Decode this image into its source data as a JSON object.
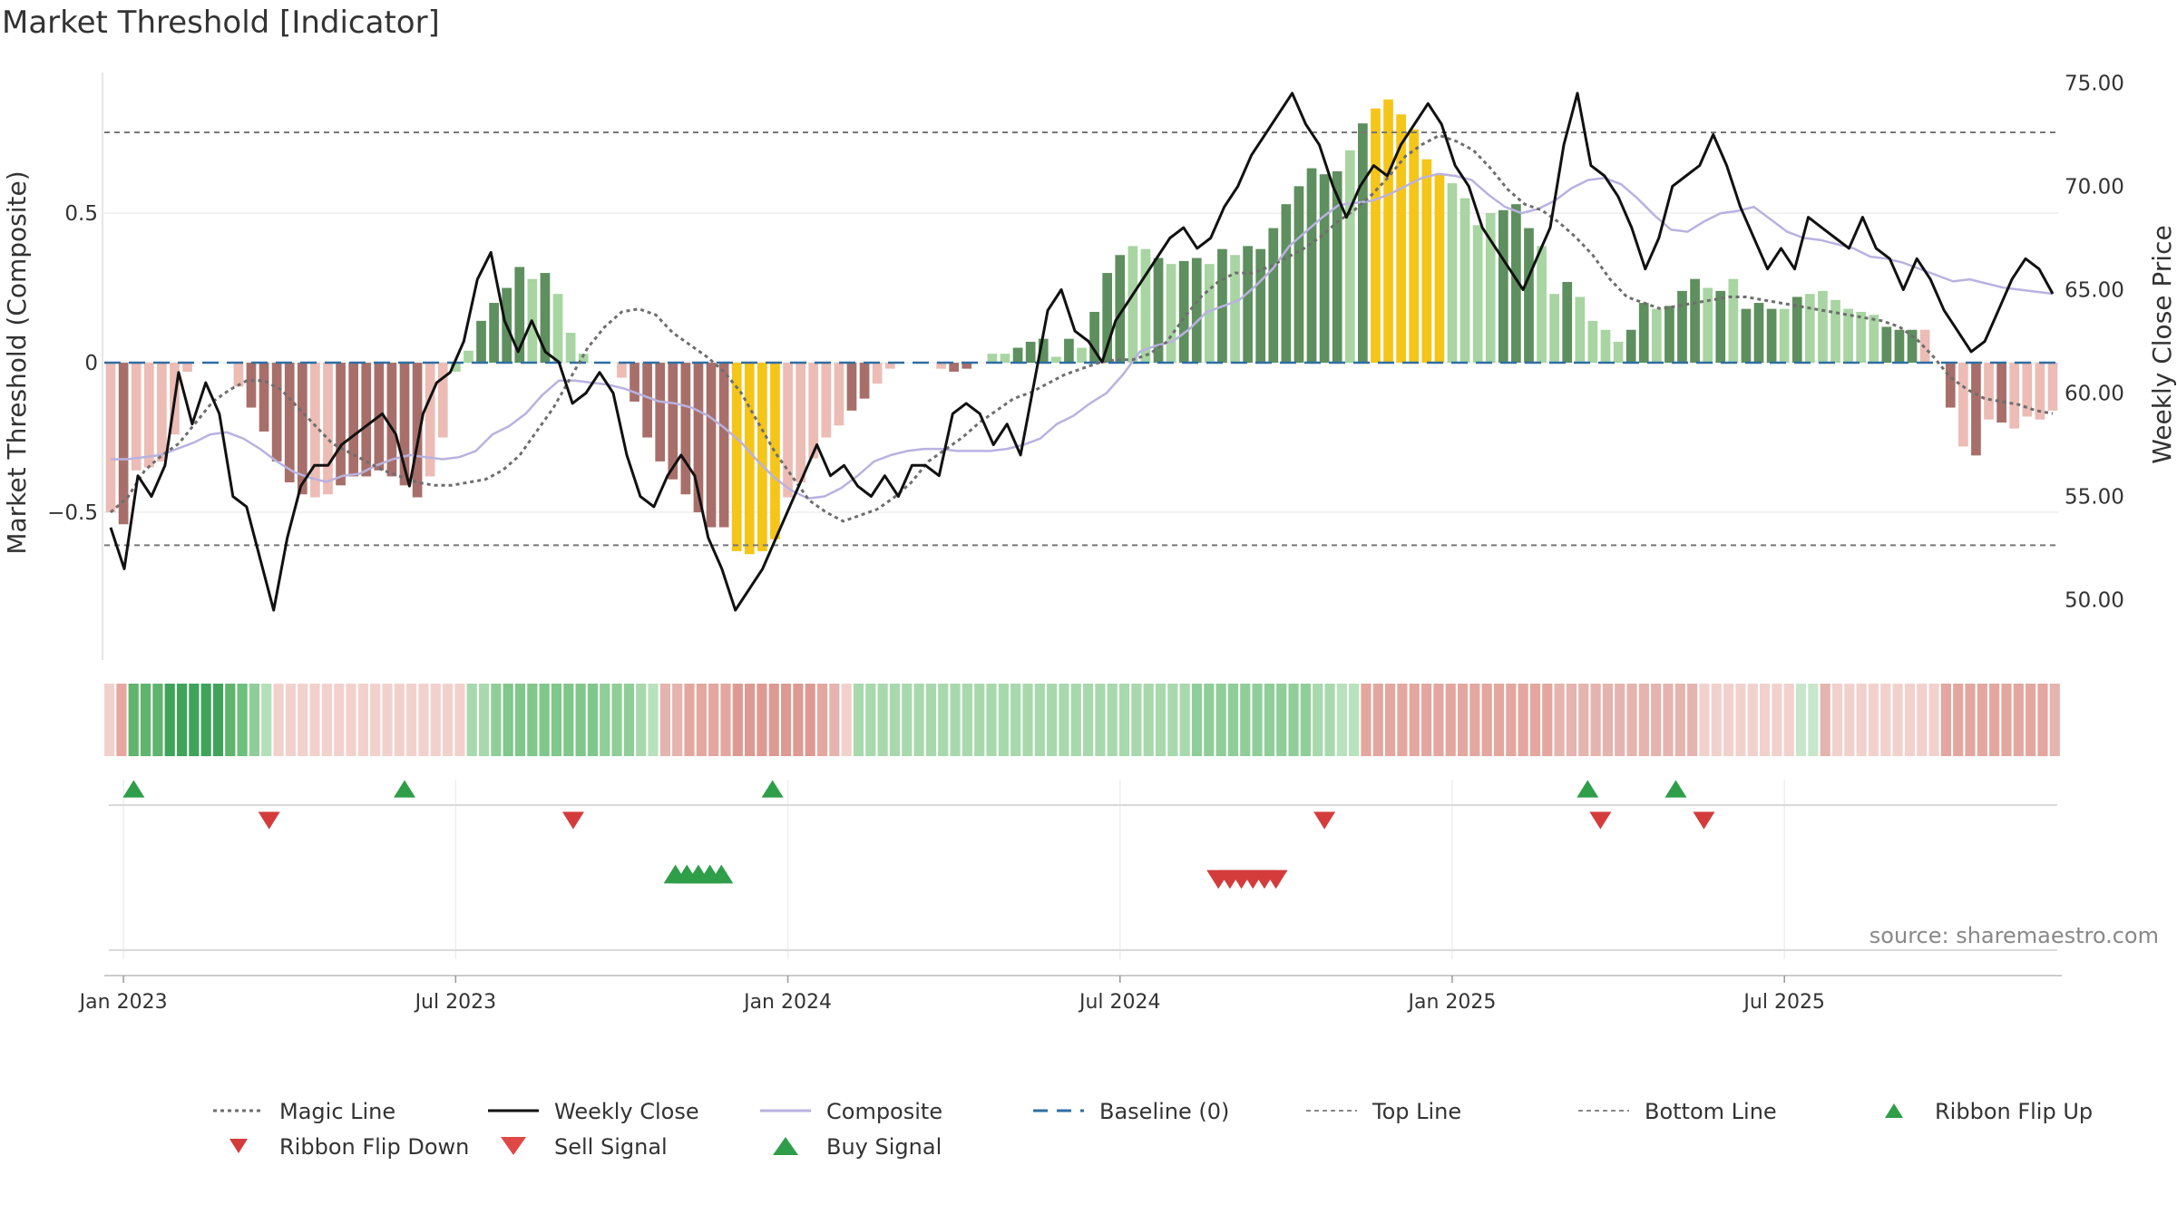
{
  "title": "Market Threshold [Indicator]",
  "source": "source: sharemaestro.com",
  "colors": {
    "bar_green_dark": "#5e8f5e",
    "bar_green_light": "#a8d5a2",
    "bar_red_dark": "#a86f6a",
    "bar_red_light": "#ecbcb5",
    "bar_gold": "#f5c518",
    "close": "#111111",
    "composite": "#b9b2e0",
    "magic": "#6e6e6e",
    "baseline": "#2f6ea3",
    "threshold": "#777777",
    "buy": "#2e9e48",
    "sell": "#d43c3c"
  },
  "chart_data": {
    "type": "bar",
    "title": "Market Threshold [Indicator]",
    "ylabel": "Market Threshold (Composite)",
    "ylabel_right": "Weekly Close Price",
    "ylim": [
      -1.0,
      0.97
    ],
    "ylim_right": [
      47.0,
      75.5
    ],
    "yticks": [
      {
        "v": 0.5,
        "label": "0.5"
      },
      {
        "v": 0,
        "label": "0"
      },
      {
        "v": -0.5,
        "label": "−0.5"
      }
    ],
    "yticks_right": [
      {
        "v": 75,
        "label": "75.00"
      },
      {
        "v": 70,
        "label": "70.00"
      },
      {
        "v": 65,
        "label": "65.00"
      },
      {
        "v": 60,
        "label": "60.00"
      },
      {
        "v": 55,
        "label": "55.00"
      },
      {
        "v": 50,
        "label": "50.00"
      }
    ],
    "xticks": [
      {
        "x": 1,
        "label": "Jan 2023"
      },
      {
        "x": 27,
        "label": "Jul 2023"
      },
      {
        "x": 53,
        "label": "Jan 2024"
      },
      {
        "x": 79,
        "label": "Jul 2024"
      },
      {
        "x": 105,
        "label": "Jan 2025"
      },
      {
        "x": 131,
        "label": "Jul 2025"
      }
    ],
    "top_line": 0.77,
    "bottom_line": -0.61,
    "composite_bars": [
      -0.5,
      -0.54,
      -0.36,
      -0.35,
      -0.33,
      -0.24,
      -0.03,
      0,
      0,
      0,
      -0.08,
      -0.15,
      -0.23,
      -0.33,
      -0.4,
      -0.44,
      -0.45,
      -0.44,
      -0.41,
      -0.38,
      -0.38,
      -0.36,
      -0.38,
      -0.41,
      -0.45,
      -0.38,
      -0.25,
      -0.03,
      0.04,
      0.14,
      0.2,
      0.25,
      0.32,
      0.28,
      0.3,
      0.23,
      0.1,
      0.03,
      0,
      0,
      -0.05,
      -0.13,
      -0.25,
      -0.33,
      -0.39,
      -0.44,
      -0.5,
      -0.55,
      -0.55,
      -0.63,
      -0.64,
      -0.63,
      -0.59,
      -0.45,
      -0.4,
      -0.32,
      -0.25,
      -0.21,
      -0.16,
      -0.12,
      -0.07,
      -0.02,
      0,
      0,
      0,
      -0.02,
      -0.03,
      -0.02,
      0,
      0.03,
      0.03,
      0.05,
      0.07,
      0.08,
      0.02,
      0.08,
      0.05,
      0.17,
      0.3,
      0.36,
      0.39,
      0.38,
      0.35,
      0.33,
      0.34,
      0.35,
      0.33,
      0.38,
      0.36,
      0.39,
      0.38,
      0.45,
      0.53,
      0.59,
      0.65,
      0.63,
      0.64,
      0.71,
      0.8,
      0.85,
      0.88,
      0.83,
      0.78,
      0.68,
      0.63,
      0.6,
      0.55,
      0.46,
      0.5,
      0.51,
      0.53,
      0.45,
      0.39,
      0.23,
      0.27,
      0.22,
      0.14,
      0.11,
      0.07,
      0.11,
      0.2,
      0.18,
      0.19,
      0.24,
      0.28,
      0.25,
      0.24,
      0.28,
      0.18,
      0.2,
      0.18,
      0.18,
      0.22,
      0.23,
      0.24,
      0.21,
      0.18,
      0.17,
      0.16,
      0.12,
      0.11,
      0.11,
      0.11,
      0,
      -0.15,
      -0.28,
      -0.31,
      -0.19,
      -0.2,
      -0.22,
      -0.18,
      -0.19,
      -0.16
    ],
    "bar_shades": [
      "rl",
      "rd",
      "rl",
      "rl",
      "rl",
      "rl",
      "rl",
      "rl",
      "rl",
      "rl",
      "rl",
      "rd",
      "rd",
      "rd",
      "rd",
      "rd",
      "rl",
      "rl",
      "rd",
      "rd",
      "rd",
      "rd",
      "rd",
      "rd",
      "rd",
      "rl",
      "rl",
      "gl",
      "gl",
      "gd",
      "gd",
      "gd",
      "gd",
      "gl",
      "gd",
      "gl",
      "gl",
      "gl",
      "gl",
      "gl",
      "rl",
      "rd",
      "rd",
      "rd",
      "rd",
      "rd",
      "rd",
      "rd",
      "rd",
      "y",
      "y",
      "y",
      "y",
      "rl",
      "rl",
      "rl",
      "rl",
      "rl",
      "rd",
      "rd",
      "rl",
      "rl",
      "rl",
      "rl",
      "rl",
      "rl",
      "rd",
      "rd",
      "rl",
      "gl",
      "gl",
      "gd",
      "gd",
      "gd",
      "gl",
      "gd",
      "gl",
      "gd",
      "gd",
      "gd",
      "gl",
      "gl",
      "gd",
      "gl",
      "gd",
      "gd",
      "gl",
      "gd",
      "gl",
      "gd",
      "gd",
      "gd",
      "gd",
      "gd",
      "gd",
      "gd",
      "gd",
      "gl",
      "gd",
      "y",
      "y",
      "y",
      "y",
      "y",
      "y",
      "gl",
      "gl",
      "gl",
      "gl",
      "gd",
      "gd",
      "gd",
      "gl",
      "gl",
      "gd",
      "gl",
      "gl",
      "gl",
      "gl",
      "gd",
      "gd",
      "gl",
      "gd",
      "gd",
      "gd",
      "gl",
      "gd",
      "gl",
      "gd",
      "gd",
      "gd",
      "gl",
      "gd",
      "gl",
      "gl",
      "gl",
      "gl",
      "gl",
      "gl",
      "gd",
      "gd",
      "gd",
      "rl",
      "rd",
      "rd",
      "rl",
      "rd",
      "rl",
      "rd",
      "rl",
      "rl"
    ],
    "weekly_close": [
      53.5,
      51.5,
      56,
      55,
      56.5,
      61,
      58.5,
      60.5,
      59,
      55,
      54.5,
      52,
      49.5,
      53,
      55.5,
      56.5,
      56.5,
      57.5,
      58,
      58.5,
      59,
      58,
      55.5,
      59,
      60.5,
      61,
      62.5,
      65.5,
      66.8,
      63.5,
      62,
      63.5,
      62,
      61.5,
      59.5,
      60,
      61,
      60,
      57,
      55,
      54.5,
      56,
      57,
      56,
      53,
      51.5,
      49.5,
      50.5,
      51.5,
      53,
      54.5,
      56,
      57.5,
      56,
      56.5,
      55.5,
      55,
      56,
      55,
      56.5,
      56.5,
      56,
      59,
      59.5,
      59,
      57.5,
      58.5,
      57,
      60.5,
      64,
      65,
      63,
      62.5,
      61.5,
      63.5,
      64.5,
      65.5,
      66.5,
      67.5,
      68,
      67,
      67.5,
      69,
      70,
      71.5,
      72.5,
      73.5,
      74.5,
      73,
      72,
      70,
      68.5,
      70,
      71,
      70.5,
      72,
      73,
      74,
      73,
      71,
      70,
      68,
      67,
      66,
      65,
      66.5,
      68,
      72,
      74.5,
      71,
      70.5,
      69.5,
      68,
      66,
      67.5,
      70,
      70.5,
      71,
      72.5,
      71,
      69,
      67.5,
      66,
      67,
      66,
      68.5,
      68,
      67.5,
      67,
      68.5,
      67,
      66.5,
      65,
      66.5,
      65.5,
      64,
      63,
      62,
      62.5,
      64,
      65.5,
      66.5,
      66,
      64.8
    ],
    "close_x": [
      0,
      1,
      2,
      3,
      4,
      5,
      6,
      7,
      8,
      9,
      10,
      11,
      12,
      13,
      14,
      15,
      16,
      17,
      18,
      19,
      20,
      21,
      22,
      23,
      24,
      25,
      26,
      27,
      28,
      29,
      30,
      31,
      32,
      33,
      34,
      35,
      36,
      37,
      38,
      39,
      40,
      41,
      42,
      43,
      44,
      45,
      46,
      47,
      48,
      49,
      50,
      51,
      52,
      53,
      54,
      55,
      56,
      57,
      58,
      59,
      60,
      61,
      62,
      63,
      64,
      65,
      66,
      67,
      68,
      69,
      70,
      71,
      72,
      73,
      74,
      75,
      76,
      77,
      78,
      79,
      80,
      81,
      82,
      83,
      84,
      85,
      86,
      87,
      88,
      89,
      90,
      91,
      92,
      93,
      94,
      95,
      96,
      97,
      98,
      99,
      100,
      101,
      102,
      103,
      104,
      105,
      106,
      107,
      108,
      109,
      110,
      111,
      112,
      113,
      114,
      115,
      116,
      117,
      118,
      119,
      120,
      121,
      122,
      123,
      124,
      125,
      126,
      127,
      128,
      129,
      130,
      131,
      132,
      133,
      134,
      135,
      136,
      137,
      138,
      139,
      140,
      141,
      142,
      143
    ],
    "composite_line": [
      56.8,
      56.8,
      56.9,
      57,
      57.3,
      57.6,
      58,
      58.1,
      57.8,
      57.3,
      56.7,
      56.2,
      55.9,
      55.7,
      56,
      56.1,
      56.5,
      56.8,
      57,
      56.9,
      56.8,
      56.9,
      57.2,
      58,
      58.4,
      59,
      59.9,
      60.6,
      60.6,
      60.5,
      60.4,
      60.2,
      59.9,
      59.6,
      59.5,
      59.3,
      58.9,
      58.3,
      57.6,
      56.7,
      55.9,
      55.3,
      54.9,
      55,
      55.4,
      56,
      56.7,
      57,
      57.2,
      57.3,
      57.3,
      57.2,
      57.2,
      57.2,
      57.3,
      57.5,
      57.8,
      58.5,
      58.9,
      59.5,
      60,
      60.9,
      62,
      62.3,
      62.5,
      63.1,
      63.9,
      64.2,
      64.5,
      65.2,
      66,
      67.1,
      67.8,
      68.5,
      69.1,
      69.2,
      69.3,
      69.6,
      70,
      70.4,
      70.6,
      70.5,
      70.3,
      69.6,
      69,
      68.7,
      68.9,
      69.3,
      69.9,
      70.3,
      70.4,
      70.1,
      69.4,
      68.6,
      67.9,
      67.8,
      68.3,
      68.7,
      68.8,
      69,
      68.4,
      67.8,
      67.5,
      67.4,
      67.2,
      67,
      66.6,
      66.5,
      66.3,
      66,
      65.7,
      65.4,
      65.5,
      65.3,
      65.1,
      65,
      64.9,
      64.8
    ],
    "magic_line": [
      -0.5,
      -0.45,
      -0.36,
      -0.31,
      -0.27,
      -0.2,
      -0.13,
      -0.09,
      -0.06,
      -0.06,
      -0.09,
      -0.15,
      -0.21,
      -0.27,
      -0.3,
      -0.33,
      -0.36,
      -0.38,
      -0.4,
      -0.41,
      -0.41,
      -0.4,
      -0.39,
      -0.36,
      -0.31,
      -0.23,
      -0.15,
      -0.05,
      0.05,
      0.12,
      0.17,
      0.18,
      0.16,
      0.1,
      0.06,
      0.02,
      -0.03,
      -0.1,
      -0.2,
      -0.3,
      -0.38,
      -0.46,
      -0.5,
      -0.53,
      -0.51,
      -0.49,
      -0.45,
      -0.4,
      -0.33,
      -0.29,
      -0.25,
      -0.2,
      -0.16,
      -0.12,
      -0.1,
      -0.07,
      -0.04,
      -0.02,
      0,
      0.01,
      0.01,
      0.03,
      0.07,
      0.15,
      0.22,
      0.27,
      0.3,
      0.3,
      0.32,
      0.35,
      0.38,
      0.42,
      0.47,
      0.51,
      0.56,
      0.62,
      0.69,
      0.73,
      0.76,
      0.74,
      0.71,
      0.65,
      0.58,
      0.53,
      0.51,
      0.47,
      0.42,
      0.36,
      0.28,
      0.22,
      0.2,
      0.18,
      0.19,
      0.2,
      0.21,
      0.22,
      0.22,
      0.21,
      0.2,
      0.19,
      0.18,
      0.17,
      0.16,
      0.15,
      0.14,
      0.12,
      0.08,
      0.02,
      -0.05,
      -0.09,
      -0.12,
      -0.13,
      -0.14,
      -0.16,
      -0.17
    ],
    "ribbon": [
      "#f2d1cd",
      "#e5a79f",
      "#5fb46e",
      "#5fb46e",
      "#5fb46e",
      "#3fa35a",
      "#3fa35a",
      "#3fa35a",
      "#3fa35a",
      "#3fa35a",
      "#5fb46e",
      "#6dbf7c",
      "#8fce98",
      "#b4e0b9",
      "#f2d1cd",
      "#f2d1cd",
      "#f2d1cd",
      "#f2d1cd",
      "#f2d1cd",
      "#f2d1cd",
      "#f2d1cd",
      "#f2d1cd",
      "#f2d1cd",
      "#f2d1cd",
      "#f2d1cd",
      "#f2d1cd",
      "#f2d1cd",
      "#f2d1cd",
      "#f2d1cd",
      "#f2d1cd",
      "#a8d9ad",
      "#a8d9ad",
      "#8fce98",
      "#7fc78a",
      "#7fc78a",
      "#7fc78a",
      "#7fc78a",
      "#7fc78a",
      "#7fc78a",
      "#7fc78a",
      "#7fc78a",
      "#8fce98",
      "#8fce98",
      "#8fce98",
      "#a8d9ad",
      "#b8e2bd",
      "#e5b4ae",
      "#e5b4ae",
      "#e3a7a0",
      "#e3a7a0",
      "#e3a7a0",
      "#e3a7a0",
      "#dd9a93",
      "#dd9a93",
      "#dd9a93",
      "#dd9a93",
      "#dd9a93",
      "#dd9a93",
      "#dd9a93",
      "#e3a7a0",
      "#e5b4ae",
      "#f2d1cd",
      "#a8d9ad",
      "#a8d9ad",
      "#a8d9ad",
      "#a8d9ad",
      "#a8d9ad",
      "#a8d9ad",
      "#a8d9ad",
      "#a8d9ad",
      "#a8d9ad",
      "#a8d9ad",
      "#a8d9ad",
      "#a8d9ad",
      "#a8d9ad",
      "#a8d9ad",
      "#a8d9ad",
      "#a8d9ad",
      "#a8d9ad",
      "#a8d9ad",
      "#a8d9ad",
      "#a8d9ad",
      "#a8d9ad",
      "#a8d9ad",
      "#a8d9ad",
      "#a8d9ad",
      "#a8d9ad",
      "#a8d9ad",
      "#a8d9ad",
      "#a8d9ad",
      "#8fce98",
      "#8fce98",
      "#8fce98",
      "#8fce98",
      "#8fce98",
      "#8fce98",
      "#8fce98",
      "#8fce98",
      "#8fce98",
      "#8fce98",
      "#a8d9ad",
      "#a8d9ad",
      "#b8e2bd",
      "#b8e2bd",
      "#e3a7a0",
      "#e3a7a0",
      "#e3a7a0",
      "#e3a7a0",
      "#e3a7a0",
      "#e3a7a0",
      "#e3a7a0",
      "#e3a7a0",
      "#e3a7a0",
      "#e3a7a0",
      "#e3a7a0",
      "#e3a7a0",
      "#e3a7a0",
      "#e3a7a0",
      "#e3a7a0",
      "#e3a7a0",
      "#e5b4ae",
      "#e5b4ae",
      "#e5b4ae",
      "#e5b4ae",
      "#e5b4ae",
      "#e5b4ae",
      "#e5b4ae",
      "#e5b4ae",
      "#e5b4ae",
      "#e5b4ae",
      "#e5b4ae",
      "#e5b4ae",
      "#f2d1cd",
      "#f2d1cd",
      "#f2d1cd",
      "#f2d1cd",
      "#f2d1cd",
      "#f2d1cd",
      "#f2d1cd",
      "#f2d1cd",
      "#c7e6cb",
      "#c7e6cb",
      "#e5b4ae",
      "#f2d1cd",
      "#f2d1cd",
      "#f2d1cd",
      "#f2d1cd",
      "#f2d1cd",
      "#f2d1cd",
      "#f2d1cd",
      "#f2d1cd",
      "#f2d1cd",
      "#e3a7a0",
      "#e3a7a0",
      "#e3a7a0",
      "#e3a7a0",
      "#e3a7a0",
      "#e3a7a0",
      "#e3a7a0",
      "#e3a7a0",
      "#e3a7a0",
      "#e5b4ae"
    ],
    "ribbon_flip_up": [
      1.8,
      23.0,
      51.8,
      115.6,
      122.5
    ],
    "ribbon_flip_down": [
      12.4,
      36.2,
      95.0,
      116.6,
      124.7
    ],
    "buy_signal": [
      44.2,
      45.1,
      46.0,
      46.9,
      47.8
    ],
    "sell_signal": [
      86.7,
      87.6,
      88.5,
      89.4,
      90.3,
      91.2
    ]
  },
  "legend": [
    {
      "key": "magic",
      "label": "Magic Line",
      "style": "dotted-line"
    },
    {
      "key": "close",
      "label": "Weekly Close",
      "style": "solid-line"
    },
    {
      "key": "composite",
      "label": "Composite",
      "style": "thin-line"
    },
    {
      "key": "baseline",
      "label": "Baseline (0)",
      "style": "dashed-line"
    },
    {
      "key": "top",
      "label": "Top Line",
      "style": "gray-dashed-line"
    },
    {
      "key": "bottom",
      "label": "Bottom Line",
      "style": "gray-dashed-line"
    },
    {
      "key": "flip_up",
      "label": "Ribbon Flip Up",
      "style": "triangle-up-green"
    },
    {
      "key": "flip_down",
      "label": "Ribbon Flip Down",
      "style": "triangle-down-red"
    },
    {
      "key": "sell",
      "label": "Sell Signal",
      "style": "triangle-down-red-large"
    },
    {
      "key": "buy",
      "label": "Buy Signal",
      "style": "triangle-up-green-large"
    }
  ]
}
